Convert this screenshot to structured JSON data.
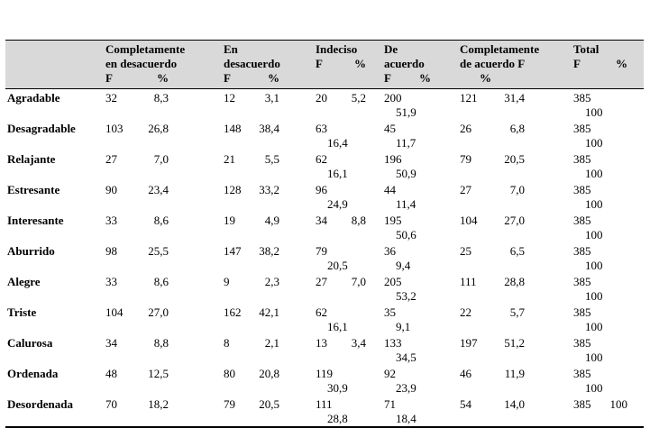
{
  "colors": {
    "header_bg": "#d9d9d9",
    "border": "#000000"
  },
  "table": {
    "header_columns": [
      {
        "name": "completamente-en-desacuerdo",
        "lines": [
          {
            "t": "Completamente"
          },
          {
            "t": "en desacuerdo"
          },
          {
            "f": "F",
            "p": "%"
          }
        ]
      },
      {
        "name": "en-desacuerdo",
        "lines": [
          {
            "t": "En"
          },
          {
            "t": "desacuerdo"
          },
          {
            "f": "F",
            "p": "%"
          }
        ]
      },
      {
        "name": "indeciso",
        "lines": [
          {
            "t": "Indeciso"
          },
          {
            "f": "F",
            "p": "%"
          }
        ]
      },
      {
        "name": "de-acuerdo",
        "lines": [
          {
            "t": "De"
          },
          {
            "t": "acuerdo"
          },
          {
            "f": "F",
            "p": "%"
          }
        ]
      },
      {
        "name": "completamente-de-acuerdo",
        "lines": [
          {
            "t": "Completamente"
          },
          {
            "t": "de acuerdo F"
          },
          {
            "t": "%",
            "indent": true
          }
        ]
      },
      {
        "name": "total",
        "lines": [
          {
            "t": "Total"
          },
          {
            "f": "F",
            "p": "%"
          }
        ]
      }
    ],
    "rows": [
      {
        "label": "Agradable",
        "cells": [
          {
            "f": "32",
            "p": "8,3"
          },
          {
            "f": "12",
            "p": "3,1"
          },
          {
            "f": "20",
            "p": "5,2"
          },
          {
            "f": "200",
            "p": "51,9",
            "wrap": true
          },
          {
            "f": "121",
            "p": "31,4"
          },
          {
            "f": "385",
            "p": "100",
            "wrap": true
          }
        ]
      },
      {
        "label": "Desagradable",
        "cells": [
          {
            "f": "103",
            "p": "26,8"
          },
          {
            "f": "148",
            "p": "38,4"
          },
          {
            "f": "63",
            "p": "16,4",
            "wrap": true
          },
          {
            "f": "45",
            "p": "11,7",
            "wrap": true
          },
          {
            "f": "26",
            "p": "6,8"
          },
          {
            "f": "385",
            "p": "100",
            "wrap": true
          }
        ]
      },
      {
        "label": "Relajante",
        "cells": [
          {
            "f": "27",
            "p": "7,0"
          },
          {
            "f": "21",
            "p": "5,5"
          },
          {
            "f": "62",
            "p": "16,1",
            "wrap": true
          },
          {
            "f": "196",
            "p": "50,9",
            "wrap": true
          },
          {
            "f": "79",
            "p": "20,5"
          },
          {
            "f": "385",
            "p": "100",
            "wrap": true
          }
        ]
      },
      {
        "label": "Estresante",
        "cells": [
          {
            "f": "90",
            "p": "23,4"
          },
          {
            "f": "128",
            "p": "33,2"
          },
          {
            "f": "96",
            "p": "24,9",
            "wrap": true
          },
          {
            "f": "44",
            "p": "11,4",
            "wrap": true
          },
          {
            "f": "27",
            "p": "7,0"
          },
          {
            "f": "385",
            "p": "100",
            "wrap": true
          }
        ]
      },
      {
        "label": "Interesante",
        "cells": [
          {
            "f": "33",
            "p": "8,6"
          },
          {
            "f": "19",
            "p": "4,9"
          },
          {
            "f": "34",
            "p": "8,8"
          },
          {
            "f": "195",
            "p": "50,6",
            "wrap": true
          },
          {
            "f": "104",
            "p": "27,0"
          },
          {
            "f": "385",
            "p": "100",
            "wrap": true
          }
        ]
      },
      {
        "label": "Aburrido",
        "cells": [
          {
            "f": "98",
            "p": "25,5"
          },
          {
            "f": "147",
            "p": "38,2"
          },
          {
            "f": "79",
            "p": "20,5",
            "wrap": true
          },
          {
            "f": "36",
            "p": "9,4",
            "wrap": true
          },
          {
            "f": "25",
            "p": "6,5"
          },
          {
            "f": "385",
            "p": "100",
            "wrap": true
          }
        ]
      },
      {
        "label": "Alegre",
        "cells": [
          {
            "f": "33",
            "p": "8,6"
          },
          {
            "f": "9",
            "p": "2,3"
          },
          {
            "f": "27",
            "p": "7,0"
          },
          {
            "f": "205",
            "p": "53,2",
            "wrap": true
          },
          {
            "f": "111",
            "p": "28,8"
          },
          {
            "f": "385",
            "p": "100",
            "wrap": true
          }
        ]
      },
      {
        "label": "Triste",
        "cells": [
          {
            "f": "104",
            "p": "27,0"
          },
          {
            "f": "162",
            "p": "42,1"
          },
          {
            "f": "62",
            "p": "16,1",
            "wrap": true
          },
          {
            "f": "35",
            "p": "9,1",
            "wrap": true
          },
          {
            "f": "22",
            "p": "5,7"
          },
          {
            "f": "385",
            "p": "100",
            "wrap": true
          }
        ]
      },
      {
        "label": "Calurosa",
        "cells": [
          {
            "f": "34",
            "p": "8,8"
          },
          {
            "f": "8",
            "p": "2,1"
          },
          {
            "f": "13",
            "p": "3,4"
          },
          {
            "f": "133",
            "p": "34,5",
            "wrap": true
          },
          {
            "f": "197",
            "p": "51,2"
          },
          {
            "f": "385",
            "p": "100",
            "wrap": true
          }
        ]
      },
      {
        "label": "Ordenada",
        "cells": [
          {
            "f": "48",
            "p": "12,5"
          },
          {
            "f": "80",
            "p": "20,8"
          },
          {
            "f": "119",
            "p": "30,9",
            "wrap": true
          },
          {
            "f": "92",
            "p": "23,9",
            "wrap": true
          },
          {
            "f": "46",
            "p": "11,9"
          },
          {
            "f": "385",
            "p": "100",
            "wrap": true
          }
        ]
      },
      {
        "label": "Desordenada",
        "cells": [
          {
            "f": "70",
            "p": "18,2"
          },
          {
            "f": "79",
            "p": "20,5"
          },
          {
            "f": "111",
            "p": "28,8",
            "wrap": true
          },
          {
            "f": "71",
            "p": "18,4",
            "wrap": true
          },
          {
            "f": "54",
            "p": "14,0"
          },
          {
            "f": "385",
            "p": "100"
          }
        ]
      }
    ]
  }
}
